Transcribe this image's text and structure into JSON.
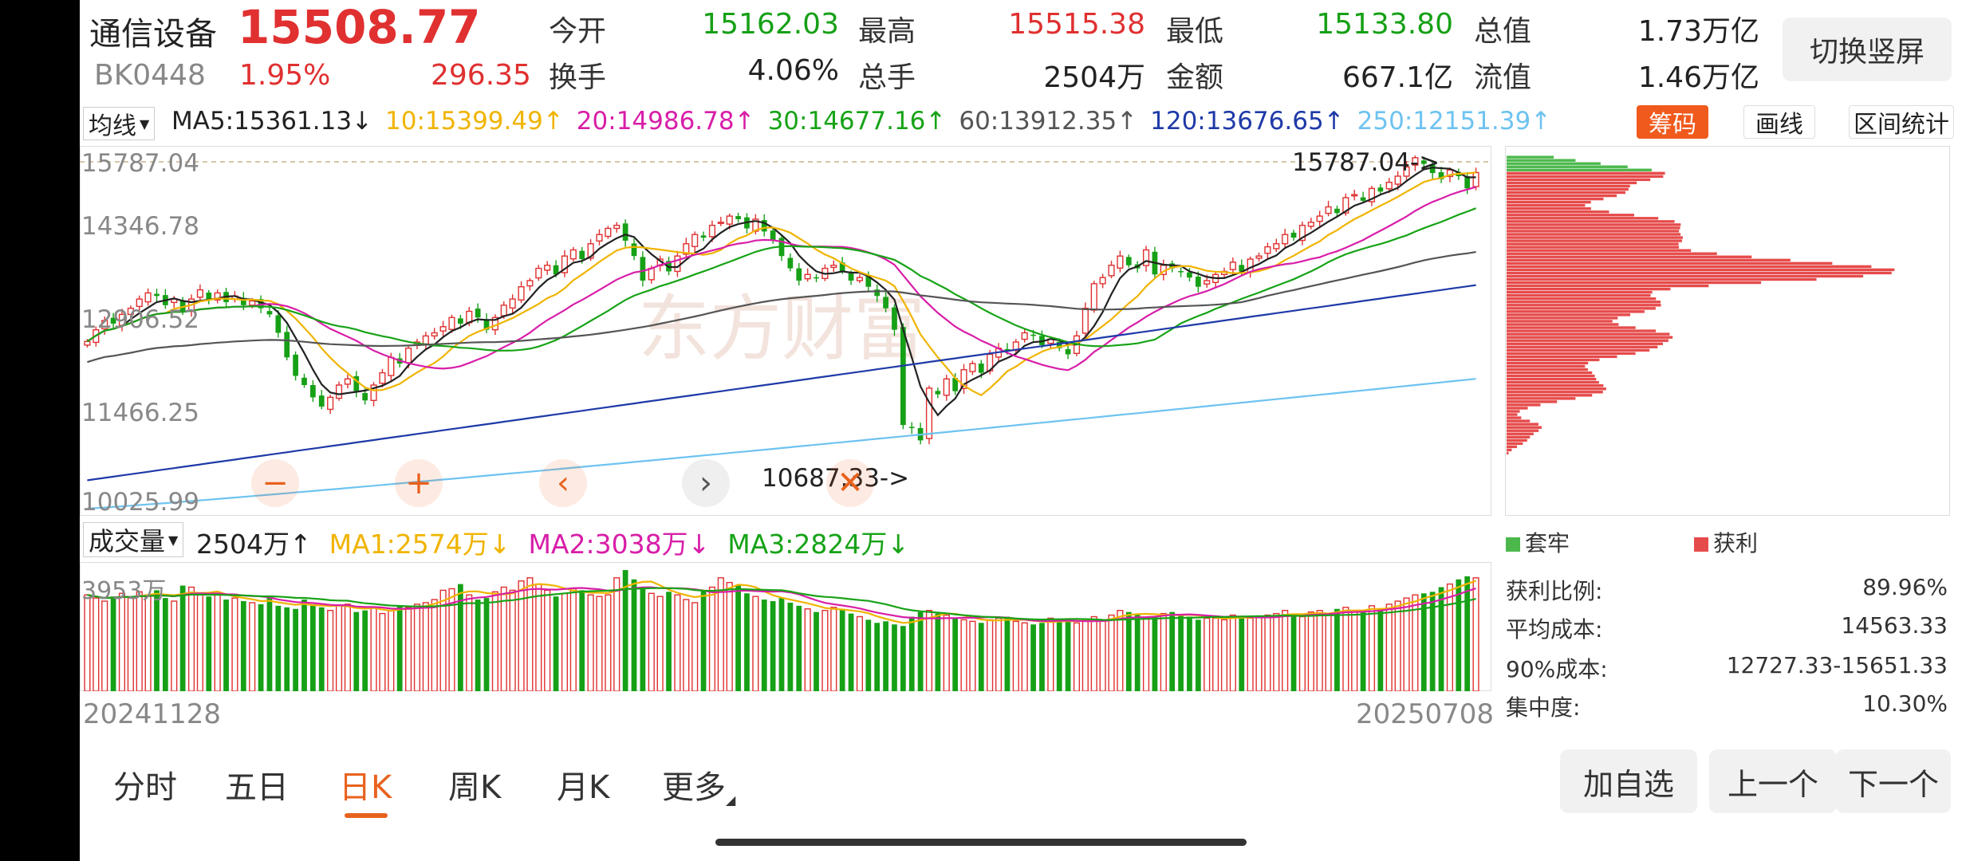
{
  "header": {
    "name": "通信设备",
    "price": "15508.77",
    "code": "BK0448",
    "change_pct": "1.95%",
    "change_abs": "296.35",
    "fields": [
      {
        "label": "今开",
        "value": "15162.03",
        "color": "green"
      },
      {
        "label": "最高",
        "value": "15515.38",
        "color": "red"
      },
      {
        "label": "最低",
        "value": "15133.80",
        "color": "green"
      },
      {
        "label": "总值",
        "value": "1.73万亿",
        "color": "dark"
      },
      {
        "label": "换手",
        "value": "4.06%",
        "color": "dark"
      },
      {
        "label": "总手",
        "value": "2504万",
        "color": "dark"
      },
      {
        "label": "金额",
        "value": "667.1亿",
        "color": "dark"
      },
      {
        "label": "流值",
        "value": "1.46万亿",
        "color": "dark"
      }
    ],
    "switch_label": "切换竖屏"
  },
  "ma_bar": {
    "selector": "均线",
    "items": [
      {
        "text": "MA5:15361.13↓",
        "color": "#222222"
      },
      {
        "text": "10:15399.49↑",
        "color": "#f0b400"
      },
      {
        "text": "20:14986.78↑",
        "color": "#d81ea8"
      },
      {
        "text": "30:14677.16↑",
        "color": "#17a317"
      },
      {
        "text": "60:13912.35↑",
        "color": "#555555"
      },
      {
        "text": "120:13676.65↑",
        "color": "#1f3aa8"
      },
      {
        "text": "250:12151.39↑",
        "color": "#6ec3f0"
      }
    ],
    "buttons": [
      "筹码",
      "画线",
      "区间统计"
    ]
  },
  "price_axis": [
    "15787.04",
    "14346.78",
    "12906.52",
    "11466.25",
    "10025.99"
  ],
  "price_ymax": 15787.04,
  "price_ymin": 10025.99,
  "markers": {
    "high": "15787.04->",
    "low": "10687.33->"
  },
  "zoom_controls": [
    "−",
    "+",
    "‹",
    "›",
    "✕"
  ],
  "watermark": "东方财富",
  "volume_bar": {
    "selector": "成交量",
    "items": [
      {
        "text": "2504万↑",
        "color": "#222222"
      },
      {
        "text": "MA1:2574万↓",
        "color": "#f0b400"
      },
      {
        "text": "MA2:3038万↓",
        "color": "#d81ea8"
      },
      {
        "text": "MA3:2824万↓",
        "color": "#17a317"
      }
    ],
    "axis_top": "3953万"
  },
  "dates": {
    "start": "20241128",
    "end": "20250708"
  },
  "chip_legend": {
    "trapped": "套牢",
    "profit": "获利"
  },
  "chip_stats": [
    {
      "label": "获利比例:",
      "value": "89.96%"
    },
    {
      "label": "平均成本:",
      "value": "14563.33"
    },
    {
      "label": "90%成本:",
      "value": "12727.33-15651.33"
    },
    {
      "label": "集中度:",
      "value": "10.30%"
    }
  ],
  "tabs": [
    "分时",
    "五日",
    "日K",
    "周K",
    "月K",
    "更多"
  ],
  "active_tab": "日K",
  "bottom_buttons": [
    "加自选",
    "上一个",
    "下一个"
  ],
  "colors": {
    "up": "#e03030",
    "down": "#16a016",
    "accent": "#e8621e"
  },
  "chart_data": {
    "type": "candlestick",
    "x_start": "20241128",
    "x_end": "20250708",
    "ylim": [
      10025.99,
      15787.04
    ],
    "closes": [
      12760,
      12950,
      13100,
      13050,
      13200,
      13300,
      13450,
      13550,
      13500,
      13350,
      13450,
      13250,
      13450,
      13600,
      13450,
      13550,
      13400,
      13500,
      13350,
      13420,
      13300,
      13200,
      12900,
      12500,
      12200,
      12050,
      11850,
      11700,
      11850,
      12050,
      12150,
      11950,
      11800,
      12050,
      12250,
      12500,
      12400,
      12650,
      12750,
      12850,
      12900,
      13000,
      13150,
      13050,
      13250,
      13150,
      12950,
      13150,
      13350,
      13450,
      13650,
      13750,
      13950,
      14000,
      13850,
      14150,
      14250,
      14100,
      14350,
      14500,
      14600,
      14650,
      14400,
      14150,
      13750,
      13950,
      14100,
      13900,
      14150,
      14350,
      14500,
      14450,
      14650,
      14700,
      14800,
      14750,
      14600,
      14750,
      14550,
      14400,
      14150,
      13950,
      13750,
      13850,
      13800,
      13950,
      14000,
      13900,
      13750,
      13800,
      13650,
      13500,
      13300,
      12950,
      11400,
      11350,
      11150,
      12000,
      11900,
      12150,
      11950,
      12300,
      12400,
      12250,
      12550,
      12650,
      12600,
      12750,
      12900,
      12850,
      12700,
      12800,
      12650,
      12550,
      12850,
      13300,
      13700,
      13800,
      14000,
      14150,
      14000,
      13950,
      14250,
      13850,
      14000,
      13950,
      13900,
      13800,
      13650,
      13750,
      13850,
      13900,
      14050,
      13900,
      14100,
      14150,
      14300,
      14350,
      14500,
      14450,
      14650,
      14700,
      14800,
      14950,
      14850,
      15100,
      15150,
      15050,
      15250,
      15200,
      15350,
      15450,
      15600,
      15750,
      15650,
      15500,
      15400,
      15550,
      15450,
      15250,
      15508.77
    ],
    "volumes": [
      3100,
      3000,
      2900,
      3050,
      3150,
      3000,
      3200,
      3100,
      3250,
      3000,
      2900,
      3400,
      3350,
      3150,
      3050,
      3100,
      2950,
      3000,
      2900,
      2850,
      2800,
      3000,
      2750,
      2700,
      2650,
      2950,
      2800,
      2700,
      2600,
      2750,
      2800,
      2550,
      2600,
      2700,
      2500,
      2600,
      2750,
      2700,
      2800,
      2850,
      2950,
      3250,
      3300,
      3450,
      3100,
      2950,
      3000,
      3200,
      3350,
      3250,
      3550,
      3650,
      3450,
      3250,
      3050,
      3150,
      3300,
      3250,
      3100,
      3050,
      3100,
      3650,
      3900,
      3600,
      3350,
      3150,
      3050,
      3200,
      3100,
      2950,
      2850,
      3250,
      3350,
      3650,
      3500,
      3400,
      3150,
      3050,
      2950,
      2900,
      3000,
      2850,
      2750,
      2650,
      2550,
      2600,
      2700,
      2650,
      2500,
      2400,
      2300,
      2200,
      2250,
      2150,
      2100,
      2400,
      2550,
      2600,
      2500,
      2450,
      2350,
      2300,
      2250,
      2200,
      2300,
      2350,
      2400,
      2250,
      2200,
      2150,
      2200,
      2350,
      2300,
      2250,
      2200,
      2250,
      2400,
      2300,
      2450,
      2600,
      2550,
      2500,
      2350,
      2400,
      2500,
      2550,
      2450,
      2400,
      2300,
      2350,
      2350,
      2300,
      2450,
      2400,
      2350,
      2400,
      2450,
      2500,
      2600,
      2450,
      2400,
      2550,
      2600,
      2500,
      2650,
      2700,
      2550,
      2600,
      2750,
      2650,
      2800,
      2900,
      3000,
      3100,
      3150,
      3200,
      3350,
      3450,
      3600,
      3700,
      3650,
      3500,
      3350,
      3150,
      2750,
      2504
    ]
  }
}
